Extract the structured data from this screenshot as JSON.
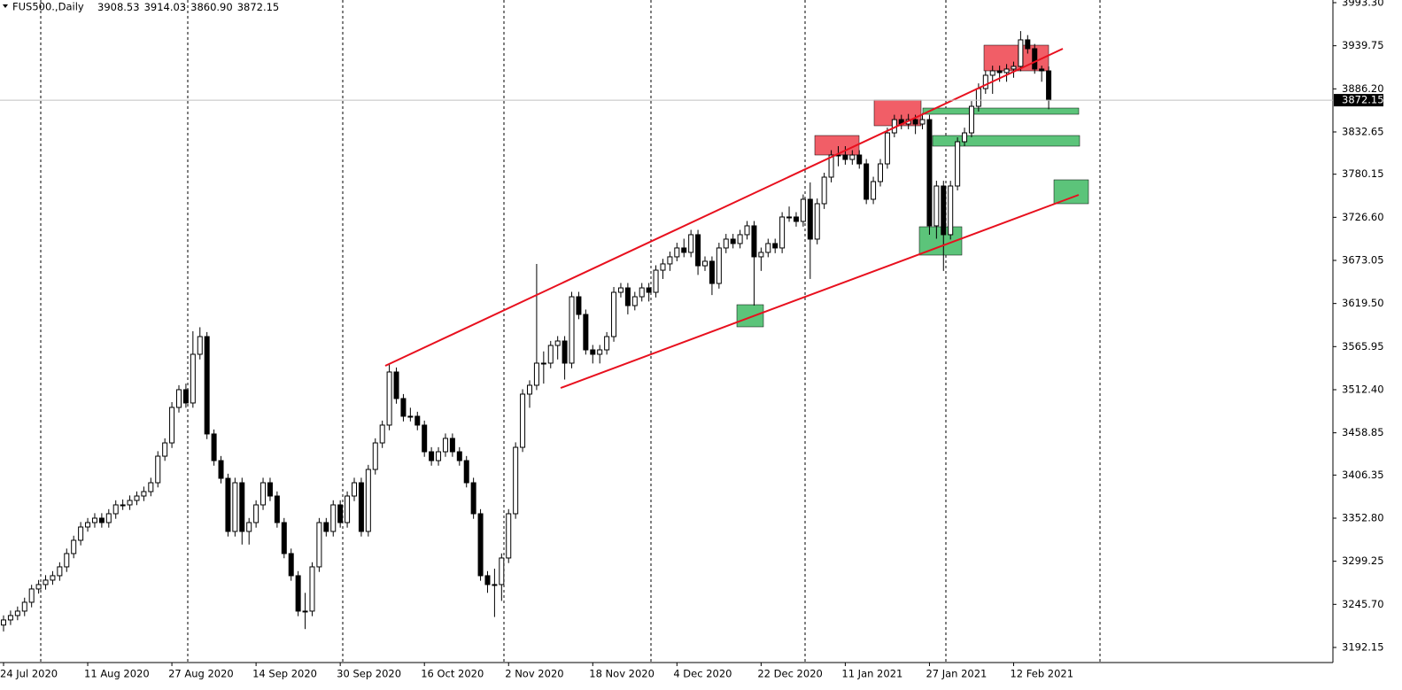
{
  "chart_data": {
    "type": "candlestick",
    "title": "FUS500.,Daily",
    "header_value_labels": [
      "3908.53",
      "3914.03",
      "3860.90",
      "3872.15"
    ],
    "categories": [
      "24 Jul 2020",
      null,
      null,
      null,
      null,
      null,
      null,
      null,
      null,
      null,
      null,
      null,
      "11 Aug 2020",
      null,
      null,
      null,
      null,
      null,
      null,
      null,
      null,
      null,
      null,
      null,
      "27 Aug 2020",
      null,
      null,
      null,
      null,
      null,
      null,
      null,
      null,
      null,
      null,
      null,
      "14 Sep 2020",
      null,
      null,
      null,
      null,
      null,
      null,
      null,
      null,
      null,
      null,
      null,
      "30 Sep 2020",
      null,
      null,
      null,
      null,
      null,
      null,
      null,
      null,
      null,
      null,
      null,
      "16 Oct 2020",
      null,
      null,
      null,
      null,
      null,
      null,
      null,
      null,
      null,
      null,
      null,
      "2 Nov 2020",
      null,
      null,
      null,
      null,
      null,
      null,
      null,
      null,
      null,
      null,
      null,
      "18 Nov 2020",
      null,
      null,
      null,
      null,
      null,
      null,
      null,
      null,
      null,
      null,
      null,
      "4 Dec 2020",
      null,
      null,
      null,
      null,
      null,
      null,
      null,
      null,
      null,
      null,
      null,
      "22 Dec 2020",
      null,
      null,
      null,
      null,
      null,
      null,
      null,
      null,
      null,
      null,
      null,
      "11 Jan 2021",
      null,
      null,
      null,
      null,
      null,
      null,
      null,
      null,
      null,
      null,
      null,
      "27 Jan 2021",
      null,
      null,
      null,
      null,
      null,
      null,
      null,
      null,
      null,
      null,
      null,
      "12 Feb 2021",
      null,
      null,
      null,
      null,
      null
    ],
    "open": [
      3220.0,
      3226.3,
      3231.8,
      3237.3,
      3248.3,
      3264.8,
      3270.3,
      3275.8,
      3281.3,
      3292.3,
      3308.8,
      3325.3,
      3341.8,
      3347.3,
      3352.8,
      3347.3,
      3358.3,
      3369.3,
      3369.3,
      3374.8,
      3380.3,
      3385.8,
      3396.8,
      3429.8,
      3446.3,
      3490.4,
      3512.4,
      3495.9,
      3556.4,
      3578.4,
      3457.4,
      3424.3,
      3402.3,
      3336.3,
      3396.8,
      3336.3,
      3347.3,
      3369.3,
      3396.8,
      3380.3,
      3347.3,
      3308.8,
      3281.3,
      3237.3,
      3237.3,
      3292.3,
      3347.3,
      3336.3,
      3369.3,
      3347.3,
      3380.3,
      3396.8,
      3336.3,
      3413.3,
      3446.3,
      3468.4,
      3534.4,
      3501.4,
      3479.4,
      3479.4,
      3468.4,
      3435.3,
      3424.3,
      3435.3,
      3451.9,
      3435.3,
      3424.3,
      3396.8,
      3358.3,
      3281.3,
      3270.3,
      3270.3,
      3303.3,
      3358.3,
      3440.8,
      3506.9,
      3517.9,
      3545.4,
      3545.4,
      3567.4,
      3572.9,
      3545.4,
      3627.9,
      3605.9,
      3561.9,
      3556.4,
      3561.9,
      3578.4,
      3633.4,
      3638.9,
      3616.9,
      3627.9,
      3638.9,
      3633.4,
      3660.9,
      3668.7,
      3677.5,
      3688.5,
      3683.0,
      3705.0,
      3666.4,
      3672.0,
      3644.4,
      3688.5,
      3699.5,
      3694.0,
      3705.0,
      3716.0,
      3677.5,
      3683.0,
      3694.0,
      3688.5,
      3727.0,
      3727.0,
      3721.5,
      3749.0,
      3699.5,
      3743.5,
      3776.5,
      3804.0,
      3804.0,
      3798.5,
      3804.0,
      3793.0,
      3749.0,
      3771.0,
      3793.0,
      3831.5,
      3848.0,
      3842.5,
      3848.0,
      3842.5,
      3848.0,
      3716.0,
      3765.5,
      3705.0,
      3765.5,
      3820.5,
      3831.5,
      3864.5,
      3886.5,
      3903.1,
      3908.6,
      3906.4,
      3910.8,
      3914.1,
      3947.1,
      3936.1,
      3910.8,
      3908.53
    ],
    "high": [
      3232,
      3238,
      3243,
      3254,
      3270,
      3276,
      3282,
      3287,
      3298,
      3315,
      3331,
      3348,
      3353,
      3359,
      3359,
      3364,
      3375,
      3376,
      3381,
      3386,
      3392,
      3403,
      3436,
      3452,
      3497,
      3518,
      3520,
      3585,
      3590,
      3584,
      3463,
      3430,
      3408,
      3403,
      3403,
      3353,
      3375,
      3403,
      3403,
      3386,
      3353,
      3315,
      3287,
      3260,
      3298,
      3353,
      3353,
      3375,
      3375,
      3386,
      3403,
      3403,
      3419,
      3452,
      3474,
      3545,
      3540,
      3507,
      3490,
      3485,
      3474,
      3441,
      3441,
      3458,
      3458,
      3441,
      3430,
      3403,
      3364,
      3287,
      3290,
      3309,
      3364,
      3447,
      3513,
      3524,
      3668.7,
      3560,
      3573,
      3579,
      3579,
      3634,
      3634,
      3612,
      3568,
      3568,
      3584,
      3640,
      3645,
      3645,
      3634,
      3645,
      3645,
      3667,
      3675,
      3684,
      3695,
      3700,
      3711,
      3711,
      3678,
      3678,
      3695,
      3706,
      3706,
      3711,
      3722,
      3722,
      3689,
      3700,
      3700,
      3733,
      3740,
      3733,
      3755,
      3770,
      3750,
      3782,
      3810,
      3815,
      3815,
      3810,
      3810,
      3799,
      3777,
      3799,
      3838,
      3854,
      3854,
      3855,
      3854,
      3856,
      3854,
      3772,
      3772,
      3772,
      3826,
      3838,
      3871,
      3893,
      3909,
      3915,
      3915,
      3917,
      3920,
      3958,
      3953,
      3942,
      3915,
      3914.03
    ],
    "low": [
      3212,
      3220,
      3226,
      3231,
      3242,
      3259,
      3264,
      3270,
      3275,
      3286,
      3303,
      3319,
      3336,
      3341,
      3341,
      3341,
      3352,
      3363,
      3363,
      3369,
      3374,
      3380,
      3391,
      3424,
      3440,
      3484,
      3490,
      3490,
      3550,
      3451,
      3418,
      3396,
      3330,
      3330,
      3320,
      3320,
      3341,
      3363,
      3374,
      3341,
      3303,
      3275,
      3231,
      3215,
      3231,
      3286,
      3330,
      3330,
      3341,
      3341,
      3374,
      3330,
      3330,
      3407,
      3440,
      3462,
      3495,
      3473,
      3473,
      3462,
      3429,
      3418,
      3418,
      3429,
      3429,
      3418,
      3391,
      3352,
      3275,
      3260,
      3230,
      3250,
      3297,
      3352,
      3435,
      3490,
      3512,
      3520,
      3539,
      3550,
      3525,
      3539,
      3600,
      3556,
      3545,
      3545,
      3556,
      3572,
      3627,
      3606,
      3611,
      3622,
      3622,
      3627,
      3650,
      3660,
      3672,
      3677,
      3677,
      3655,
      3660,
      3630,
      3638,
      3682,
      3688,
      3688,
      3699,
      3616.9,
      3660,
      3677,
      3682,
      3682,
      3721,
      3715,
      3715,
      3650,
      3693,
      3737,
      3770,
      3790,
      3792,
      3792,
      3787,
      3743,
      3743,
      3765,
      3787,
      3826,
      3836,
      3836,
      3830,
      3836,
      3705,
      3700,
      3660,
      3699,
      3760,
      3815,
      3826,
      3858,
      3880,
      3880,
      3895,
      3895,
      3900,
      3908,
      3930,
      3905,
      3895,
      3860.9
    ],
    "close": [
      3226.3,
      3231.8,
      3237.3,
      3248.3,
      3264.8,
      3270.3,
      3275.8,
      3281.3,
      3292.3,
      3308.8,
      3325.3,
      3341.8,
      3347.3,
      3352.8,
      3347.3,
      3358.3,
      3369.3,
      3369.3,
      3374.8,
      3380.3,
      3385.8,
      3396.8,
      3429.8,
      3446.3,
      3490.4,
      3512.4,
      3495.9,
      3556.4,
      3578.4,
      3457.4,
      3424.3,
      3402.3,
      3336.3,
      3396.8,
      3336.3,
      3347.3,
      3369.3,
      3396.8,
      3380.3,
      3347.3,
      3308.8,
      3281.3,
      3237.3,
      3237.3,
      3292.3,
      3347.3,
      3336.3,
      3369.3,
      3347.3,
      3380.3,
      3396.8,
      3336.3,
      3413.3,
      3446.3,
      3468.4,
      3534.4,
      3501.4,
      3479.4,
      3479.4,
      3468.4,
      3435.3,
      3424.3,
      3435.3,
      3451.9,
      3435.3,
      3424.3,
      3396.8,
      3358.3,
      3281.3,
      3270.3,
      3270.3,
      3303.3,
      3358.3,
      3440.8,
      3506.9,
      3517.9,
      3545.4,
      3545.4,
      3567.4,
      3572.9,
      3545.4,
      3627.9,
      3605.9,
      3561.9,
      3556.4,
      3561.9,
      3578.4,
      3633.4,
      3638.9,
      3616.9,
      3627.9,
      3638.9,
      3633.4,
      3660.9,
      3668.7,
      3677.5,
      3688.5,
      3683.0,
      3705.0,
      3666.4,
      3672.0,
      3644.4,
      3688.5,
      3699.5,
      3694.0,
      3705.0,
      3716.0,
      3677.5,
      3683.0,
      3694.0,
      3688.5,
      3727.0,
      3727.0,
      3721.5,
      3749.0,
      3699.5,
      3743.5,
      3776.5,
      3804.0,
      3804.0,
      3798.5,
      3804.0,
      3793.0,
      3749.0,
      3771.0,
      3793.0,
      3831.5,
      3848.0,
      3842.5,
      3848.0,
      3842.5,
      3848.0,
      3716.0,
      3765.5,
      3705.0,
      3765.5,
      3820.5,
      3831.5,
      3864.5,
      3886.5,
      3903.1,
      3908.6,
      3906.4,
      3910.8,
      3914.1,
      3947.1,
      3936.1,
      3910.8,
      3908.6,
      3872.15
    ],
    "up_color": "#ffffff",
    "down_color": "#000000",
    "edge_color": "#000000",
    "current_price": {
      "value": 3872.15,
      "label": "3872.15"
    },
    "ylim": [
      3173.4,
      3996.6
    ],
    "yticks": [
      {
        "value": 3993.3,
        "label": "3993.30"
      },
      3939.75,
      {
        "value": 3886.2,
        "label": "3886.20"
      },
      3832.65,
      3780.15,
      {
        "value": 3726.6,
        "label": "3726.60"
      },
      3673.05,
      {
        "value": 3619.5,
        "label": "3619.50"
      },
      3565.95,
      {
        "value": 3512.4,
        "label": "3512.40"
      },
      3458.85,
      3406.35,
      {
        "value": 3352.8,
        "label": "3352.80"
      },
      3299.25,
      {
        "value": 3245.7,
        "label": "3245.70"
      },
      3192.15
    ]
  }
}
